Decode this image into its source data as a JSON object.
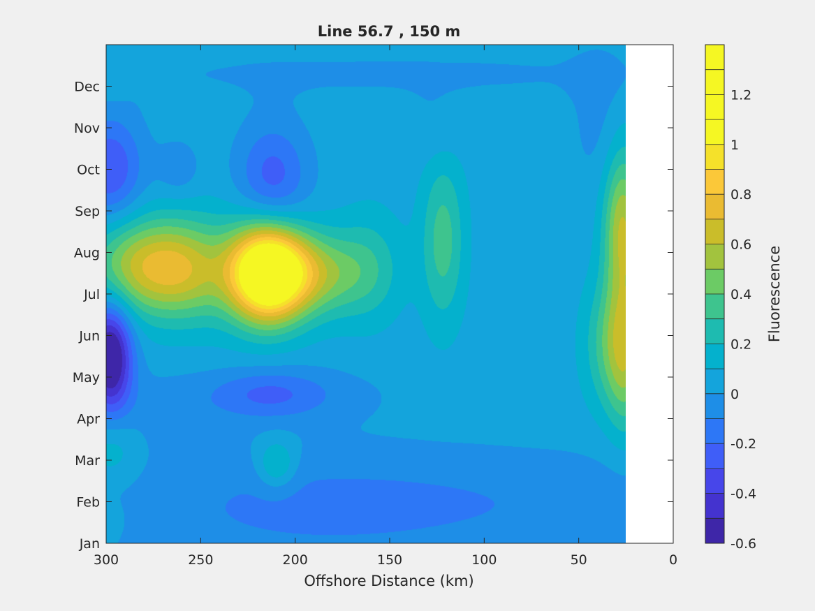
{
  "chart_data": {
    "type": "contour",
    "title": "Line 56.7 , 150 m",
    "xlabel": "Offshore Distance (km)",
    "ylabel": "",
    "colorbar_label": "Fluorescence",
    "xlim": [
      300,
      0
    ],
    "x_reversed": true,
    "x_ticks": [
      300,
      250,
      200,
      150,
      100,
      50,
      0
    ],
    "x_tick_labels": [
      "300",
      "250",
      "200",
      "150",
      "100",
      "50",
      "0"
    ],
    "y_tick_labels": [
      "Jan",
      "Feb",
      "Mar",
      "Apr",
      "May",
      "Jun",
      "Jul",
      "Aug",
      "Sep",
      "Oct",
      "Nov",
      "Dec"
    ],
    "data_x_min": 25,
    "clim": [
      -0.6,
      1.4
    ],
    "level_step": 0.1,
    "colorbar_ticks": [
      -0.6,
      -0.4,
      -0.2,
      0,
      0.2,
      0.4,
      0.6,
      0.8,
      1,
      1.2
    ],
    "colorbar_tick_labels": [
      "-0.6",
      "-0.4",
      "-0.2",
      "0",
      "0.2",
      "0.4",
      "0.6",
      "0.8",
      "1",
      "1.2"
    ],
    "colormap": [
      "#3e26a8",
      "#4433cf",
      "#4746ea",
      "#3f5ef8",
      "#2d77f6",
      "#1e8ee7",
      "#14a4dc",
      "#04b1cd",
      "#1ebbb0",
      "#3ec48e",
      "#6ccb65",
      "#a2c33e",
      "#cabd2a",
      "#eabb32",
      "#fbc839",
      "#f5e12a",
      "#f5f723"
    ],
    "field": {
      "base": 0.05,
      "features": [
        {
          "x": 215,
          "month": 6.5,
          "sx": 14,
          "sy": 0.8,
          "amp": 1.25
        },
        {
          "x": 190,
          "month": 6.5,
          "sx": 20,
          "sy": 0.7,
          "amp": 0.45
        },
        {
          "x": 160,
          "month": 6.7,
          "sx": 12,
          "sy": 1.0,
          "amp": 0.15
        },
        {
          "x": 285,
          "month": 6.7,
          "sx": 18,
          "sy": 0.8,
          "amp": 0.45
        },
        {
          "x": 260,
          "month": 6.6,
          "sx": 16,
          "sy": 0.8,
          "amp": 0.4
        },
        {
          "x": 245,
          "month": 6.6,
          "sx": 25,
          "sy": 1.0,
          "amp": 0.15
        },
        {
          "x": 122,
          "month": 7.3,
          "sx": 8,
          "sy": 1.4,
          "amp": 0.3
        },
        {
          "x": 27,
          "month": 7.6,
          "sx": 7,
          "sy": 1.3,
          "amp": 0.55
        },
        {
          "x": 33,
          "month": 4.8,
          "sx": 10,
          "sy": 1.1,
          "amp": 0.3
        },
        {
          "x": 25,
          "month": 4.5,
          "sx": 7,
          "sy": 1.3,
          "amp": 0.35
        },
        {
          "x": 298,
          "month": 4.5,
          "sx": 8,
          "sy": 0.9,
          "amp": -0.75
        },
        {
          "x": 298,
          "month": 9.0,
          "sx": 12,
          "sy": 0.9,
          "amp": -0.35
        },
        {
          "x": 262,
          "month": 9.0,
          "sx": 8,
          "sy": 0.5,
          "amp": -0.12
        },
        {
          "x": 212,
          "month": 8.8,
          "sx": 13,
          "sy": 0.9,
          "amp": -0.3
        },
        {
          "x": 215,
          "month": 3.6,
          "sx": 20,
          "sy": 0.4,
          "amp": -0.18
        },
        {
          "x": 200,
          "month": 3.6,
          "sx": 35,
          "sy": 0.5,
          "amp": -0.1
        },
        {
          "x": 270,
          "month": 3.2,
          "sx": 25,
          "sy": 0.7,
          "amp": -0.08
        },
        {
          "x": 200,
          "month": 0.8,
          "sx": 80,
          "sy": 1.1,
          "amp": -0.13
        },
        {
          "x": 60,
          "month": 1.0,
          "sx": 120,
          "sy": 0.9,
          "amp": -0.1
        },
        {
          "x": 150,
          "month": 11.3,
          "sx": 160,
          "sy": 0.5,
          "amp": -0.06
        },
        {
          "x": 125,
          "month": 10.0,
          "sx": 10,
          "sy": 0.6,
          "amp": -0.07
        },
        {
          "x": 40,
          "month": 10.1,
          "sx": 10,
          "sy": 1.2,
          "amp": -0.08
        },
        {
          "x": 297,
          "month": 2.3,
          "sx": 10,
          "sy": 0.6,
          "amp": 0.15
        },
        {
          "x": 210,
          "month": 1.9,
          "sx": 7,
          "sy": 0.4,
          "amp": 0.25
        },
        {
          "x": 297,
          "month": 11.1,
          "sx": 7,
          "sy": 0.3,
          "amp": 0.1
        },
        {
          "x": 297,
          "month": 0.6,
          "sx": 5,
          "sy": 0.3,
          "amp": 0.07
        }
      ]
    }
  }
}
